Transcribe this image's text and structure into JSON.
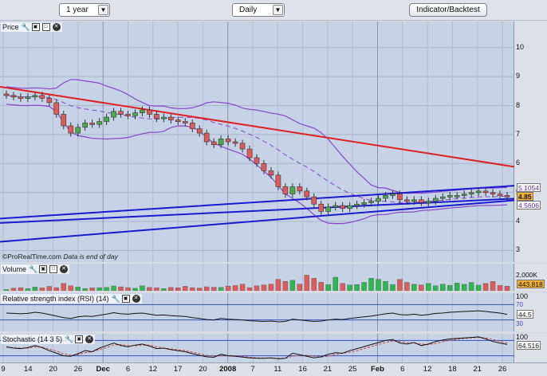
{
  "toolbar": {
    "period": "1 year",
    "interval": "Daily",
    "indicator_button": "Indicator/Backtest"
  },
  "panels": {
    "price": {
      "title": "Price",
      "note_brand": "©ProRealTime.com",
      "note_text": "Data is end of day"
    },
    "volume": {
      "title": "Volume"
    },
    "rsi": {
      "title": "Relative strength index (RSI) (14)"
    },
    "stoch": {
      "title": "Stochastic (14 3 5)"
    }
  },
  "icons": [
    "wrench-icon",
    "window-icon",
    "maximize-icon",
    "close-icon"
  ],
  "colors": {
    "plot_bg": "#c6d3e6",
    "up_candle": "#4caa4c",
    "down_candle": "#e05a5a",
    "bollinger": "#8a44cc",
    "trend_red": "#e02020",
    "channel_blue": "#1a1ad0",
    "vol_high": "#2db84d"
  },
  "chart_data": [
    {
      "type": "candlestick",
      "panel": "price",
      "x_labels": [
        "9",
        "14",
        "20",
        "26",
        "Dec",
        "6",
        "12",
        "17",
        "20",
        "2008",
        "7",
        "11",
        "16",
        "21",
        "25",
        "Feb",
        "6",
        "12",
        "18",
        "21",
        "26"
      ],
      "y_ticks": [
        3,
        4,
        5,
        6,
        7,
        8,
        9,
        10
      ],
      "ylim": [
        2.6,
        10.9
      ],
      "grid": true,
      "closes": [
        8.35,
        8.3,
        8.25,
        8.3,
        8.35,
        8.25,
        8.1,
        7.7,
        7.3,
        7.05,
        7.25,
        7.4,
        7.35,
        7.45,
        7.6,
        7.8,
        7.7,
        7.65,
        7.75,
        7.85,
        7.7,
        7.55,
        7.6,
        7.5,
        7.45,
        7.4,
        7.2,
        7.05,
        6.75,
        6.65,
        6.85,
        6.75,
        6.7,
        6.5,
        6.2,
        6.0,
        5.75,
        5.6,
        5.2,
        4.95,
        5.2,
        5.05,
        4.85,
        4.6,
        4.35,
        4.5,
        4.55,
        4.45,
        4.55,
        4.6,
        4.65,
        4.7,
        4.8,
        4.9,
        4.95,
        4.75,
        4.7,
        4.75,
        4.65,
        4.7,
        4.8,
        4.85,
        4.9,
        4.9,
        4.95,
        5.0,
        5.05,
        5.0,
        4.95,
        4.9,
        4.85
      ],
      "last_close": "4.85",
      "bollinger_upper_label": "5.1054",
      "bollinger_lower_label": "4.5606",
      "lines": [
        {
          "name": "trend_red",
          "from": [
            0,
            8.65
          ],
          "to": [
            71,
            5.85
          ]
        },
        {
          "name": "channel_upper",
          "from": [
            0,
            4.1
          ],
          "to": [
            71,
            5.25
          ]
        },
        {
          "name": "channel_mid",
          "from": [
            0,
            3.95
          ],
          "to": [
            71,
            4.8
          ]
        },
        {
          "name": "channel_lower",
          "from": [
            0,
            3.3
          ],
          "to": [
            71,
            4.75
          ]
        }
      ]
    },
    {
      "type": "bar",
      "panel": "volume",
      "ylim": [
        0,
        2600000
      ],
      "y_ticks": [
        "2,000K"
      ],
      "last_label": "443,818",
      "values": [
        120,
        250,
        300,
        200,
        350,
        280,
        420,
        300,
        700,
        480,
        360,
        220,
        280,
        300,
        320,
        460,
        380,
        300,
        240,
        480,
        320,
        280,
        210,
        320,
        280,
        430,
        300,
        260,
        380,
        340,
        320,
        450,
        500,
        640,
        300,
        480,
        560,
        640,
        1100,
        900,
        1000,
        640,
        1500,
        1200,
        820,
        600,
        1300,
        700,
        560,
        600,
        800,
        1200,
        1100,
        900,
        600,
        1100,
        800,
        620,
        560,
        700,
        480,
        640,
        520,
        740,
        620,
        800,
        540,
        700,
        900,
        520,
        444
      ]
    },
    {
      "type": "line",
      "panel": "rsi",
      "ylim": [
        0,
        100
      ],
      "y_ticks": [
        "100",
        "70",
        "30"
      ],
      "last_label": "44.5",
      "values": [
        48,
        47,
        46,
        47,
        50,
        48,
        44,
        40,
        36,
        34,
        38,
        40,
        39,
        42,
        45,
        49,
        46,
        45,
        47,
        48,
        45,
        42,
        43,
        41,
        40,
        39,
        36,
        34,
        31,
        30,
        34,
        32,
        31,
        30,
        28,
        27,
        26,
        27,
        25,
        26,
        32,
        30,
        28,
        26,
        27,
        30,
        32,
        31,
        34,
        36,
        38,
        40,
        43,
        46,
        48,
        44,
        43,
        45,
        42,
        44,
        47,
        48,
        50,
        51,
        52,
        53,
        54,
        52,
        50,
        48,
        44.5
      ]
    },
    {
      "type": "line",
      "panel": "stochastic",
      "ylim": [
        0,
        100
      ],
      "y_ticks": [
        "100"
      ],
      "last_label": "64.516",
      "series": [
        {
          "values": [
            55,
            50,
            48,
            52,
            60,
            52,
            40,
            30,
            20,
            18,
            28,
            40,
            36,
            50,
            60,
            70,
            60,
            55,
            62,
            66,
            58,
            48,
            50,
            44,
            40,
            36,
            28,
            22,
            16,
            14,
            26,
            20,
            18,
            15,
            12,
            10,
            10,
            12,
            8,
            10,
            30,
            24,
            18,
            12,
            16,
            26,
            32,
            30,
            40,
            48,
            56,
            64,
            72,
            80,
            84,
            70,
            66,
            72,
            60,
            66,
            76,
            82,
            86,
            88,
            90,
            92,
            94,
            86,
            76,
            70,
            64.5
          ]
        },
        {
          "values": [
            54,
            52,
            50,
            50,
            55,
            54,
            46,
            38,
            28,
            22,
            24,
            32,
            36,
            44,
            52,
            62,
            64,
            60,
            59,
            62,
            62,
            55,
            50,
            47,
            43,
            40,
            34,
            28,
            22,
            18,
            20,
            22,
            20,
            17,
            14,
            12,
            11,
            11,
            10,
            10,
            18,
            22,
            22,
            18,
            15,
            18,
            25,
            30,
            34,
            40,
            48,
            56,
            64,
            72,
            78,
            76,
            72,
            70,
            66,
            64,
            68,
            75,
            81,
            85,
            88,
            90,
            92,
            90,
            84,
            77,
            70
          ]
        }
      ]
    }
  ]
}
